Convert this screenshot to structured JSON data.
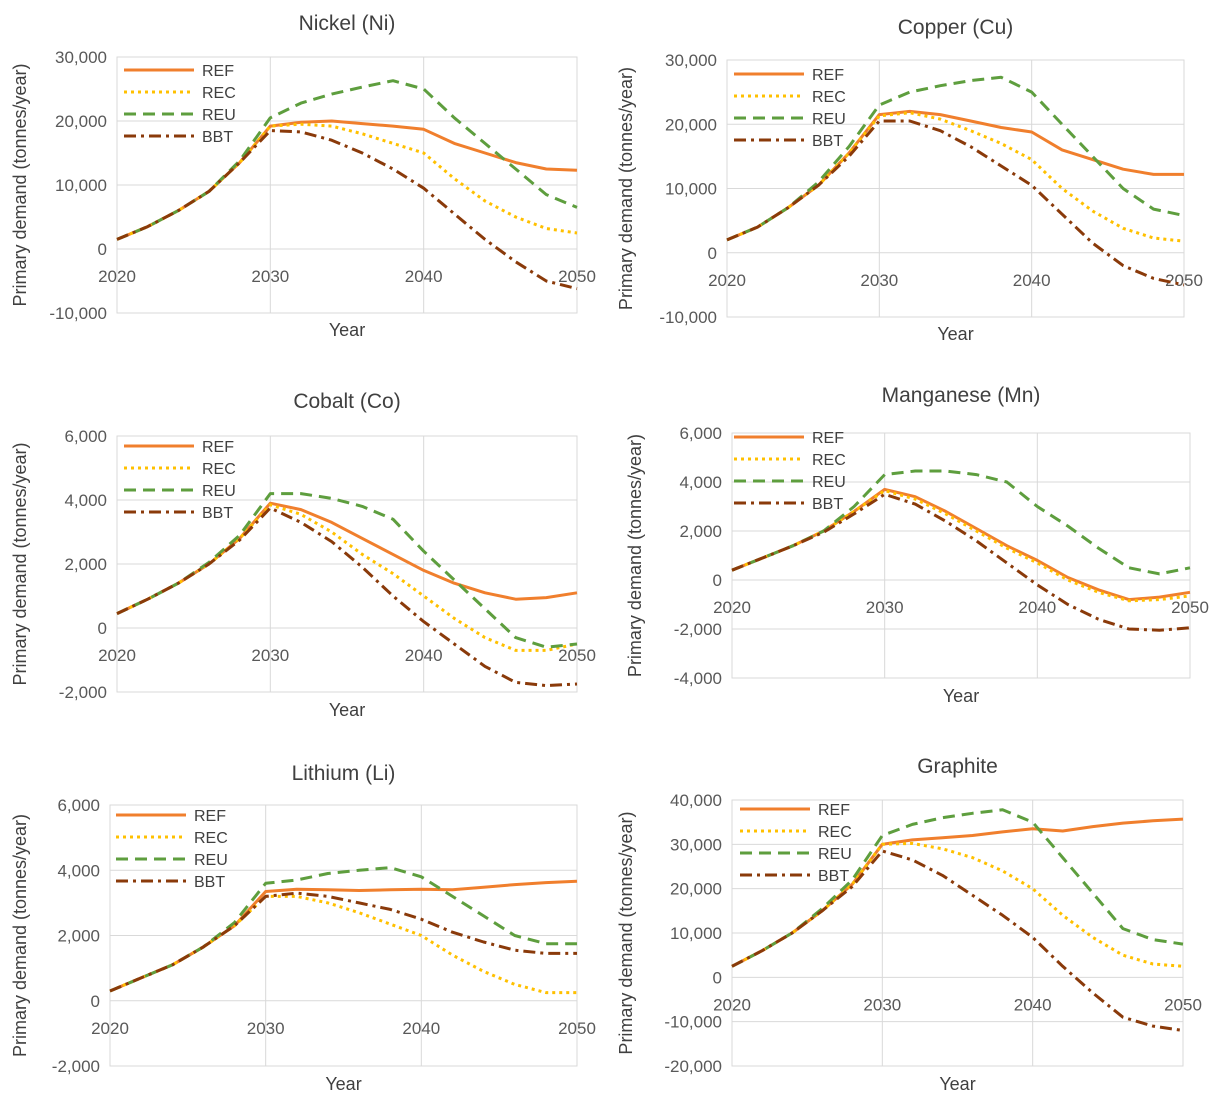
{
  "series_styles": [
    {
      "name": "REF",
      "color": "#F07F2D",
      "dash": "",
      "width": 3
    },
    {
      "name": "REC",
      "color": "#FFC000",
      "dash": "3,4",
      "width": 3
    },
    {
      "name": "REU",
      "color": "#5E9E3E",
      "dash": "12,7",
      "width": 3
    },
    {
      "name": "BBT",
      "color": "#8A3A0A",
      "dash": "12,5,3,5",
      "width": 3
    }
  ],
  "chart_data": [
    {
      "type": "line",
      "title": "Nickel (Ni)",
      "xlabel": "Year",
      "ylabel": "Primary demand (tonnes/year)",
      "xlim": [
        2020,
        2050
      ],
      "ylim": [
        -10000,
        30000
      ],
      "yticks": [
        -10000,
        0,
        10000,
        20000,
        30000
      ],
      "ytick_labels": [
        "-10,000",
        "0",
        "10,000",
        "20,000",
        "30,000"
      ],
      "xticks": [
        2020,
        2030,
        2040,
        2050
      ],
      "xtick_labels": [
        "2020",
        "2030",
        "2040",
        "2050"
      ],
      "x": [
        2020,
        2022,
        2024,
        2026,
        2028,
        2030,
        2032,
        2034,
        2036,
        2038,
        2040,
        2042,
        2044,
        2046,
        2048,
        2050
      ],
      "series": [
        {
          "name": "REF",
          "values": [
            1500,
            3500,
            6000,
            9000,
            13500,
            19200,
            19800,
            20000,
            19600,
            19200,
            18700,
            16500,
            15000,
            13500,
            12500,
            12300
          ]
        },
        {
          "name": "REC",
          "values": [
            1500,
            3500,
            6000,
            9000,
            13500,
            19200,
            19500,
            19200,
            18000,
            16500,
            15000,
            11000,
            7500,
            5000,
            3200,
            2500
          ]
        },
        {
          "name": "REU",
          "values": [
            1500,
            3500,
            6000,
            9000,
            13800,
            20500,
            22800,
            24200,
            25300,
            26300,
            25000,
            20500,
            16500,
            12500,
            8500,
            6500
          ]
        },
        {
          "name": "BBT",
          "values": [
            1500,
            3500,
            6000,
            9000,
            13500,
            18500,
            18300,
            17000,
            15000,
            12500,
            9500,
            5500,
            1500,
            -2000,
            -5000,
            -6200
          ]
        }
      ]
    },
    {
      "type": "line",
      "title": "Copper (Cu)",
      "xlabel": "Year",
      "ylabel": "Primary demand (tonnes/year)",
      "xlim": [
        2020,
        2050
      ],
      "ylim": [
        -10000,
        30000
      ],
      "yticks": [
        -10000,
        0,
        10000,
        20000,
        30000
      ],
      "ytick_labels": [
        "-10,000",
        "0",
        "10,000",
        "20,000",
        "30,000"
      ],
      "xticks": [
        2020,
        2030,
        2040,
        2050
      ],
      "xtick_labels": [
        "2020",
        "2030",
        "2040",
        "2050"
      ],
      "x": [
        2020,
        2022,
        2024,
        2026,
        2028,
        2030,
        2032,
        2034,
        2036,
        2038,
        2040,
        2042,
        2044,
        2046,
        2048,
        2050
      ],
      "series": [
        {
          "name": "REF",
          "values": [
            2000,
            4000,
            7000,
            10500,
            15500,
            21500,
            22000,
            21500,
            20500,
            19500,
            18800,
            16000,
            14500,
            13000,
            12200,
            12200
          ]
        },
        {
          "name": "REC",
          "values": [
            2000,
            4000,
            7000,
            10500,
            15500,
            21300,
            21800,
            20800,
            19000,
            17000,
            14500,
            10000,
            6500,
            3800,
            2300,
            1800
          ]
        },
        {
          "name": "REU",
          "values": [
            2000,
            4000,
            7000,
            11000,
            16500,
            23000,
            25000,
            26000,
            26800,
            27300,
            25000,
            20000,
            15000,
            10000,
            6800,
            5800
          ]
        },
        {
          "name": "BBT",
          "values": [
            2000,
            4000,
            7000,
            10500,
            15000,
            20500,
            20500,
            19000,
            16500,
            13500,
            10500,
            6000,
            1500,
            -2000,
            -4000,
            -5000
          ]
        }
      ]
    },
    {
      "type": "line",
      "title": "Cobalt (Co)",
      "xlabel": "Year",
      "ylabel": "Primary demand (tonnes/year)",
      "xlim": [
        2020,
        2050
      ],
      "ylim": [
        -2000,
        6000
      ],
      "yticks": [
        -2000,
        0,
        2000,
        4000,
        6000
      ],
      "ytick_labels": [
        "-2,000",
        "0",
        "2,000",
        "4,000",
        "6,000"
      ],
      "xticks": [
        2020,
        2030,
        2040,
        2050
      ],
      "xtick_labels": [
        "2020",
        "2030",
        "2040",
        "2050"
      ],
      "x": [
        2020,
        2022,
        2024,
        2026,
        2028,
        2030,
        2032,
        2034,
        2036,
        2038,
        2040,
        2042,
        2044,
        2046,
        2048,
        2050
      ],
      "series": [
        {
          "name": "REF",
          "values": [
            450,
            900,
            1400,
            2000,
            2800,
            3900,
            3700,
            3300,
            2800,
            2300,
            1800,
            1400,
            1100,
            900,
            950,
            1100
          ]
        },
        {
          "name": "REC",
          "values": [
            450,
            900,
            1400,
            2000,
            2800,
            3850,
            3550,
            3000,
            2300,
            1700,
            1000,
            300,
            -300,
            -700,
            -700,
            -500
          ]
        },
        {
          "name": "REU",
          "values": [
            450,
            900,
            1400,
            2050,
            2900,
            4200,
            4200,
            4050,
            3800,
            3400,
            2400,
            1500,
            600,
            -300,
            -600,
            -500
          ]
        },
        {
          "name": "BBT",
          "values": [
            450,
            900,
            1400,
            2000,
            2750,
            3750,
            3300,
            2700,
            1900,
            1000,
            200,
            -500,
            -1200,
            -1700,
            -1800,
            -1750
          ]
        }
      ]
    },
    {
      "type": "line",
      "title": "Manganese (Mn)",
      "xlabel": "Year",
      "ylabel": "Primary demand (tonnes/year)",
      "xlim": [
        2020,
        2050
      ],
      "ylim": [
        -4000,
        6000
      ],
      "yticks": [
        -4000,
        -2000,
        0,
        2000,
        4000,
        6000
      ],
      "ytick_labels": [
        "-4,000",
        "-2,000",
        "0",
        "2,000",
        "4,000",
        "6,000"
      ],
      "xticks": [
        2020,
        2030,
        2040,
        2050
      ],
      "xtick_labels": [
        "2020",
        "2030",
        "2040",
        "2050"
      ],
      "x": [
        2020,
        2022,
        2024,
        2026,
        2028,
        2030,
        2032,
        2034,
        2036,
        2038,
        2040,
        2042,
        2044,
        2046,
        2048,
        2050
      ],
      "series": [
        {
          "name": "REF",
          "values": [
            400,
            900,
            1400,
            2000,
            2800,
            3700,
            3400,
            2800,
            2100,
            1400,
            800,
            100,
            -400,
            -800,
            -700,
            -500
          ]
        },
        {
          "name": "REC",
          "values": [
            400,
            900,
            1400,
            2000,
            2800,
            3650,
            3300,
            2700,
            2000,
            1300,
            700,
            0,
            -500,
            -850,
            -800,
            -650
          ]
        },
        {
          "name": "REU",
          "values": [
            400,
            900,
            1400,
            2000,
            3000,
            4300,
            4450,
            4450,
            4300,
            4000,
            3000,
            2200,
            1300,
            500,
            250,
            500
          ]
        },
        {
          "name": "BBT",
          "values": [
            400,
            900,
            1400,
            1950,
            2700,
            3500,
            3100,
            2400,
            1600,
            700,
            -200,
            -1000,
            -1600,
            -2000,
            -2050,
            -1950
          ]
        }
      ]
    },
    {
      "type": "line",
      "title": "Lithium (Li)",
      "xlabel": "Year",
      "ylabel": "Primary demand (tonnes/year)",
      "xlim": [
        2020,
        2050
      ],
      "ylim": [
        -2000,
        6000
      ],
      "yticks": [
        -2000,
        0,
        2000,
        4000,
        6000
      ],
      "ytick_labels": [
        "-2,000",
        "0",
        "2,000",
        "4,000",
        "6,000"
      ],
      "xticks": [
        2020,
        2030,
        2040,
        2050
      ],
      "xtick_labels": [
        "2020",
        "2030",
        "2040",
        "2050"
      ],
      "x": [
        2020,
        2022,
        2024,
        2026,
        2028,
        2030,
        2032,
        2034,
        2036,
        2038,
        2040,
        2042,
        2044,
        2046,
        2048,
        2050
      ],
      "series": [
        {
          "name": "REF",
          "values": [
            300,
            700,
            1100,
            1650,
            2300,
            3350,
            3420,
            3400,
            3380,
            3400,
            3420,
            3400,
            3480,
            3560,
            3620,
            3660
          ]
        },
        {
          "name": "REC",
          "values": [
            300,
            700,
            1100,
            1650,
            2300,
            3200,
            3200,
            3000,
            2700,
            2350,
            2000,
            1400,
            900,
            500,
            250,
            250
          ]
        },
        {
          "name": "REU",
          "values": [
            300,
            700,
            1100,
            1650,
            2400,
            3600,
            3700,
            3900,
            4000,
            4080,
            3800,
            3200,
            2600,
            2000,
            1750,
            1750
          ]
        },
        {
          "name": "BBT",
          "values": [
            300,
            700,
            1100,
            1650,
            2300,
            3200,
            3300,
            3200,
            3000,
            2800,
            2500,
            2100,
            1800,
            1550,
            1450,
            1450
          ]
        }
      ]
    },
    {
      "type": "line",
      "title": "Graphite",
      "xlabel": "Year",
      "ylabel": "Primary demand (tonnes/year)",
      "xlim": [
        2020,
        2050
      ],
      "ylim": [
        -20000,
        40000
      ],
      "yticks": [
        -20000,
        -10000,
        0,
        10000,
        20000,
        30000,
        40000
      ],
      "ytick_labels": [
        "-20,000",
        "-10,000",
        "0",
        "10,000",
        "20,000",
        "30,000",
        "40,000"
      ],
      "xticks": [
        2020,
        2030,
        2040,
        2050
      ],
      "xtick_labels": [
        "2020",
        "2030",
        "2040",
        "2050"
      ],
      "x": [
        2020,
        2022,
        2024,
        2026,
        2028,
        2030,
        2032,
        2034,
        2036,
        2038,
        2040,
        2042,
        2044,
        2046,
        2048,
        2050
      ],
      "series": [
        {
          "name": "REF",
          "values": [
            2500,
            6000,
            10000,
            15000,
            21000,
            30000,
            31000,
            31500,
            32000,
            32800,
            33500,
            33000,
            34000,
            34800,
            35300,
            35700
          ]
        },
        {
          "name": "REC",
          "values": [
            2500,
            6000,
            10000,
            15000,
            21000,
            30000,
            30200,
            29000,
            27000,
            24000,
            20000,
            14000,
            9000,
            5000,
            3000,
            2500
          ]
        },
        {
          "name": "REU",
          "values": [
            2500,
            6000,
            10000,
            15500,
            22000,
            32000,
            34500,
            36000,
            37000,
            37800,
            35000,
            27000,
            19000,
            11000,
            8500,
            7500
          ]
        },
        {
          "name": "BBT",
          "values": [
            2500,
            6000,
            10000,
            15000,
            20500,
            28500,
            26500,
            23000,
            18500,
            14000,
            9000,
            2500,
            -3500,
            -9000,
            -11000,
            -12000
          ]
        }
      ]
    }
  ]
}
